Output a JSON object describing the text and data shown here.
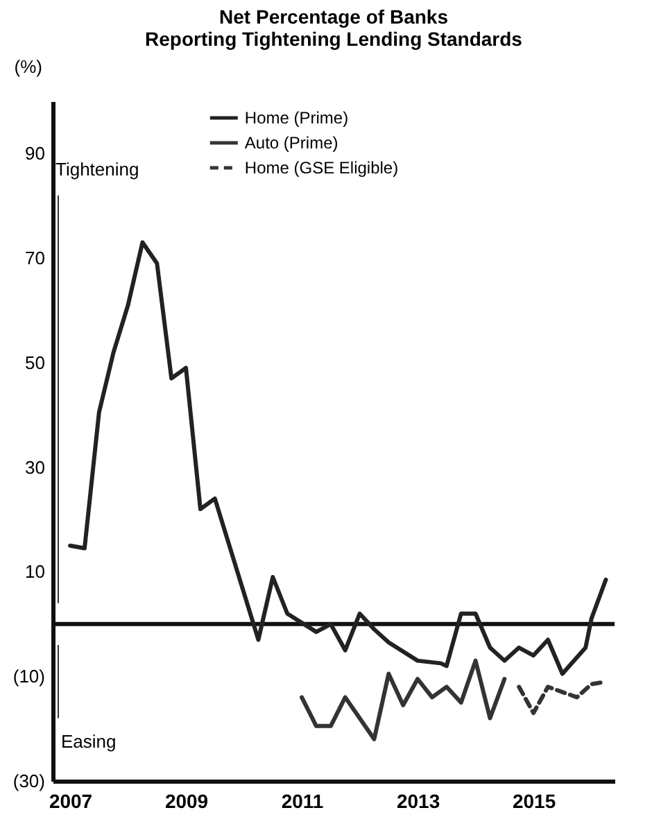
{
  "chart_data": {
    "type": "line",
    "title": [
      "Net Percentage of Banks",
      "Reporting Tightening Lending Standards"
    ],
    "ylabel": "(%)",
    "annotations": [
      "Tightening",
      "Easing"
    ],
    "xlim": [
      2006.7,
      2016.4
    ],
    "xticks": [
      2007,
      2009,
      2011,
      2013,
      2015
    ],
    "ylim": [
      -30,
      100
    ],
    "yticks": [
      {
        "value": -30,
        "label": "(30)"
      },
      {
        "value": -10,
        "label": "(10)"
      },
      10,
      30,
      50,
      70,
      90
    ],
    "ref_lines": [
      {
        "axis": "y",
        "value": 0,
        "color": "#111111"
      }
    ],
    "grid": false,
    "legend": "top",
    "marker": "none",
    "series": [
      {
        "name": "Home (Prime)",
        "color": "#222222",
        "line_style": "solid",
        "x": [
          2007.0,
          2007.25,
          2007.5,
          2007.75,
          2008.0,
          2008.25,
          2008.5,
          2008.75,
          2009.0,
          2009.25,
          2009.5,
          2010.25,
          2010.5,
          2010.75,
          2011.25,
          2011.5,
          2011.75,
          2012.0,
          2012.25,
          2012.5,
          2013.0,
          2013.4,
          2013.5,
          2013.75,
          2014.0,
          2014.25,
          2014.5,
          2014.75,
          2015.0,
          2015.25,
          2015.5,
          2015.9,
          2016.0,
          2016.25
        ],
        "values": [
          15,
          14.5,
          40.5,
          52,
          61,
          73,
          69,
          47,
          49,
          22,
          24,
          -3,
          9,
          2,
          -1.5,
          0,
          -5,
          2,
          -1,
          -3.5,
          -7,
          -7.5,
          -8,
          2,
          2,
          -4.5,
          -7,
          -4.5,
          -6,
          -3,
          -9.5,
          -4.5,
          1,
          8.5
        ]
      },
      {
        "name": "Auto (Prime)",
        "color": "#333333",
        "line_style": "solid",
        "x": [
          2011.0,
          2011.25,
          2011.5,
          2011.75,
          2012.25,
          2012.5,
          2012.75,
          2013.0,
          2013.25,
          2013.5,
          2013.75,
          2014.0,
          2014.25,
          2014.5
        ],
        "values": [
          -14,
          -19.5,
          -19.5,
          -14,
          -22,
          -9.5,
          -15.5,
          -10.5,
          -14,
          -12,
          -15,
          -7,
          -18,
          -10.5
        ]
      },
      {
        "name": "Home (GSE Eligible)",
        "color": "#333333",
        "line_style": "dashed",
        "x": [
          2014.75,
          2015.0,
          2015.25,
          2015.5,
          2015.75,
          2016.0,
          2016.25
        ],
        "values": [
          -12,
          -17,
          -12,
          -13,
          -14,
          -11.5,
          -11
        ]
      }
    ]
  }
}
